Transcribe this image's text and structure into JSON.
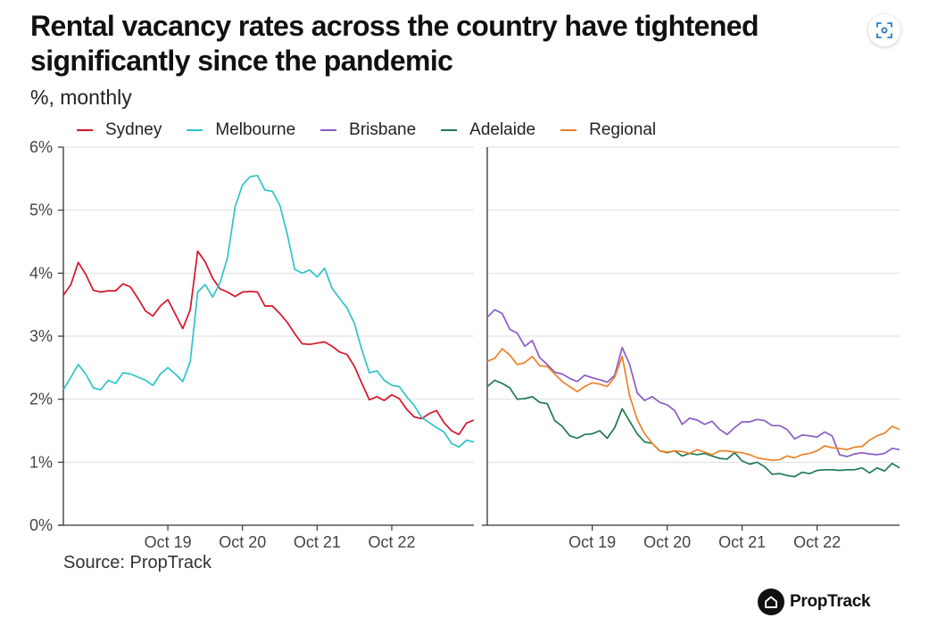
{
  "title": "Rental vacancy rates across the country have tightened significantly since the pandemic",
  "subtitle": "%, monthly",
  "source": "Source: PropTrack",
  "brand": {
    "name": "PropTrack",
    "logo_icon": "house-icon"
  },
  "expand_icon": "expand-icon",
  "chart_data": {
    "type": "line",
    "y_ticks": [
      "6%",
      "5%",
      "4%",
      "3%",
      "2%",
      "1%",
      "0%"
    ],
    "ylim": [
      0,
      6
    ],
    "x_ticks": [
      "Oct 19",
      "Oct 20",
      "Oct 21",
      "Oct 22"
    ],
    "x_tick_positions": [
      14,
      24,
      34,
      44
    ],
    "panels": [
      {
        "name": "left",
        "series": [
          {
            "name": "Sydney",
            "color": "#d7132a",
            "values": [
              3.65,
              3.82,
              4.17,
              3.98,
              3.73,
              3.7,
              3.72,
              3.72,
              3.83,
              3.78,
              3.6,
              3.4,
              3.32,
              3.48,
              3.58,
              3.35,
              3.12,
              3.42,
              4.35,
              4.18,
              3.92,
              3.75,
              3.7,
              3.63,
              3.7,
              3.71,
              3.7,
              3.48,
              3.48,
              3.36,
              3.22,
              3.04,
              2.88,
              2.87,
              2.89,
              2.91,
              2.84,
              2.75,
              2.71,
              2.52,
              2.25,
              1.99,
              2.04,
              1.98,
              2.07,
              2.01,
              1.84,
              1.72,
              1.69,
              1.77,
              1.82,
              1.63,
              1.5,
              1.44,
              1.62,
              1.67
            ]
          },
          {
            "name": "Melbourne",
            "color": "#2ec4c9",
            "values": [
              2.15,
              2.35,
              2.55,
              2.4,
              2.18,
              2.15,
              2.3,
              2.25,
              2.42,
              2.4,
              2.35,
              2.3,
              2.22,
              2.4,
              2.5,
              2.4,
              2.28,
              2.6,
              3.7,
              3.82,
              3.62,
              3.85,
              4.25,
              5.05,
              5.4,
              5.53,
              5.55,
              5.32,
              5.3,
              5.08,
              4.62,
              4.06,
              4.0,
              4.05,
              3.94,
              4.08,
              3.76,
              3.6,
              3.45,
              3.2,
              2.78,
              2.42,
              2.45,
              2.3,
              2.22,
              2.2,
              2.04,
              1.9,
              1.71,
              1.63,
              1.55,
              1.48,
              1.3,
              1.24,
              1.35,
              1.32
            ]
          }
        ]
      },
      {
        "name": "right",
        "series": [
          {
            "name": "Brisbane",
            "color": "#8a5bc5",
            "values": [
              3.3,
              3.42,
              3.36,
              3.11,
              3.05,
              2.84,
              2.93,
              2.66,
              2.55,
              2.43,
              2.4,
              2.33,
              2.28,
              2.38,
              2.34,
              2.31,
              2.27,
              2.38,
              2.82,
              2.55,
              2.1,
              1.98,
              2.04,
              1.95,
              1.91,
              1.82,
              1.6,
              1.7,
              1.67,
              1.6,
              1.65,
              1.52,
              1.44,
              1.55,
              1.64,
              1.64,
              1.68,
              1.66,
              1.58,
              1.58,
              1.52,
              1.37,
              1.43,
              1.42,
              1.4,
              1.48,
              1.42,
              1.12,
              1.09,
              1.13,
              1.15,
              1.13,
              1.12,
              1.14,
              1.22,
              1.2
            ]
          },
          {
            "name": "Adelaide",
            "color": "#1d7a50",
            "values": [
              2.2,
              2.3,
              2.25,
              2.18,
              2.0,
              2.01,
              2.04,
              1.95,
              1.93,
              1.66,
              1.57,
              1.42,
              1.38,
              1.44,
              1.45,
              1.5,
              1.38,
              1.55,
              1.85,
              1.65,
              1.45,
              1.32,
              1.3,
              1.18,
              1.15,
              1.18,
              1.1,
              1.14,
              1.12,
              1.14,
              1.1,
              1.06,
              1.05,
              1.15,
              1.02,
              0.97,
              1.0,
              0.93,
              0.81,
              0.82,
              0.79,
              0.77,
              0.84,
              0.82,
              0.87,
              0.88,
              0.88,
              0.87,
              0.88,
              0.88,
              0.91,
              0.83,
              0.91,
              0.86,
              0.98,
              0.91
            ]
          },
          {
            "name": "Regional",
            "color": "#ec8127",
            "values": [
              2.6,
              2.65,
              2.8,
              2.7,
              2.55,
              2.58,
              2.68,
              2.53,
              2.52,
              2.4,
              2.28,
              2.2,
              2.12,
              2.2,
              2.26,
              2.24,
              2.2,
              2.35,
              2.68,
              2.05,
              1.68,
              1.45,
              1.3,
              1.18,
              1.16,
              1.18,
              1.17,
              1.14,
              1.2,
              1.16,
              1.12,
              1.18,
              1.18,
              1.16,
              1.15,
              1.12,
              1.07,
              1.05,
              1.03,
              1.04,
              1.1,
              1.07,
              1.12,
              1.14,
              1.18,
              1.26,
              1.23,
              1.22,
              1.2,
              1.24,
              1.25,
              1.35,
              1.42,
              1.46,
              1.57,
              1.52
            ]
          }
        ]
      }
    ]
  }
}
